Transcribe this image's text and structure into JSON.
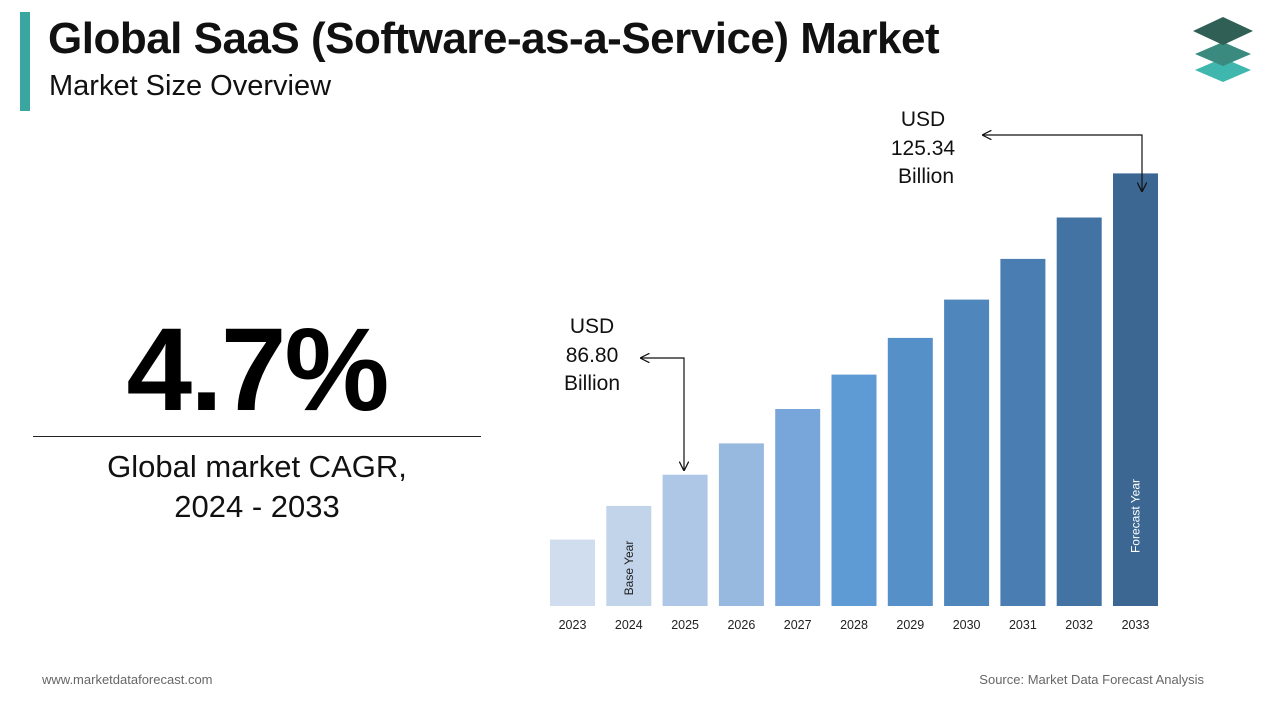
{
  "header": {
    "title": "Global SaaS (Software-as-a-Service) Market",
    "subtitle": "Market Size Overview"
  },
  "cagr": {
    "value": "4.7%",
    "label_line1": "Global market CAGR,",
    "label_line2": "2024 - 2033"
  },
  "callouts": {
    "start": {
      "line1": "USD",
      "line2": "86.80",
      "line3": "Billion"
    },
    "end": {
      "line1": "USD",
      "line2": "125.34",
      "line3": "Billion"
    }
  },
  "footer": {
    "website": "www.marketdataforecast.com",
    "source": "Source: Market Data Forecast Analysis"
  },
  "colors": {
    "accent": "#3aa6a0",
    "bars": [
      "#cfddee",
      "#c1d4ea",
      "#aec7e6",
      "#97b8df",
      "#79a6da",
      "#5e9ad4",
      "#5590c8",
      "#4f86bc",
      "#4a7db1",
      "#4373a3",
      "#3b6792"
    ]
  },
  "chart_data": {
    "type": "bar",
    "categories": [
      "2023",
      "2024",
      "2025",
      "2026",
      "2027",
      "2028",
      "2029",
      "2030",
      "2031",
      "2032",
      "2033"
    ],
    "values": [
      78.5,
      82.8,
      86.8,
      90.8,
      95.2,
      99.6,
      104.3,
      109.2,
      114.4,
      119.7,
      125.34
    ],
    "ylim": [
      70,
      130
    ],
    "bar_annotations": [
      {
        "category": "2024",
        "text": "Base Year"
      },
      {
        "category": "2033",
        "text": "Forecast Year"
      }
    ],
    "title": "",
    "xlabel": "",
    "ylabel": "",
    "grid": false
  }
}
